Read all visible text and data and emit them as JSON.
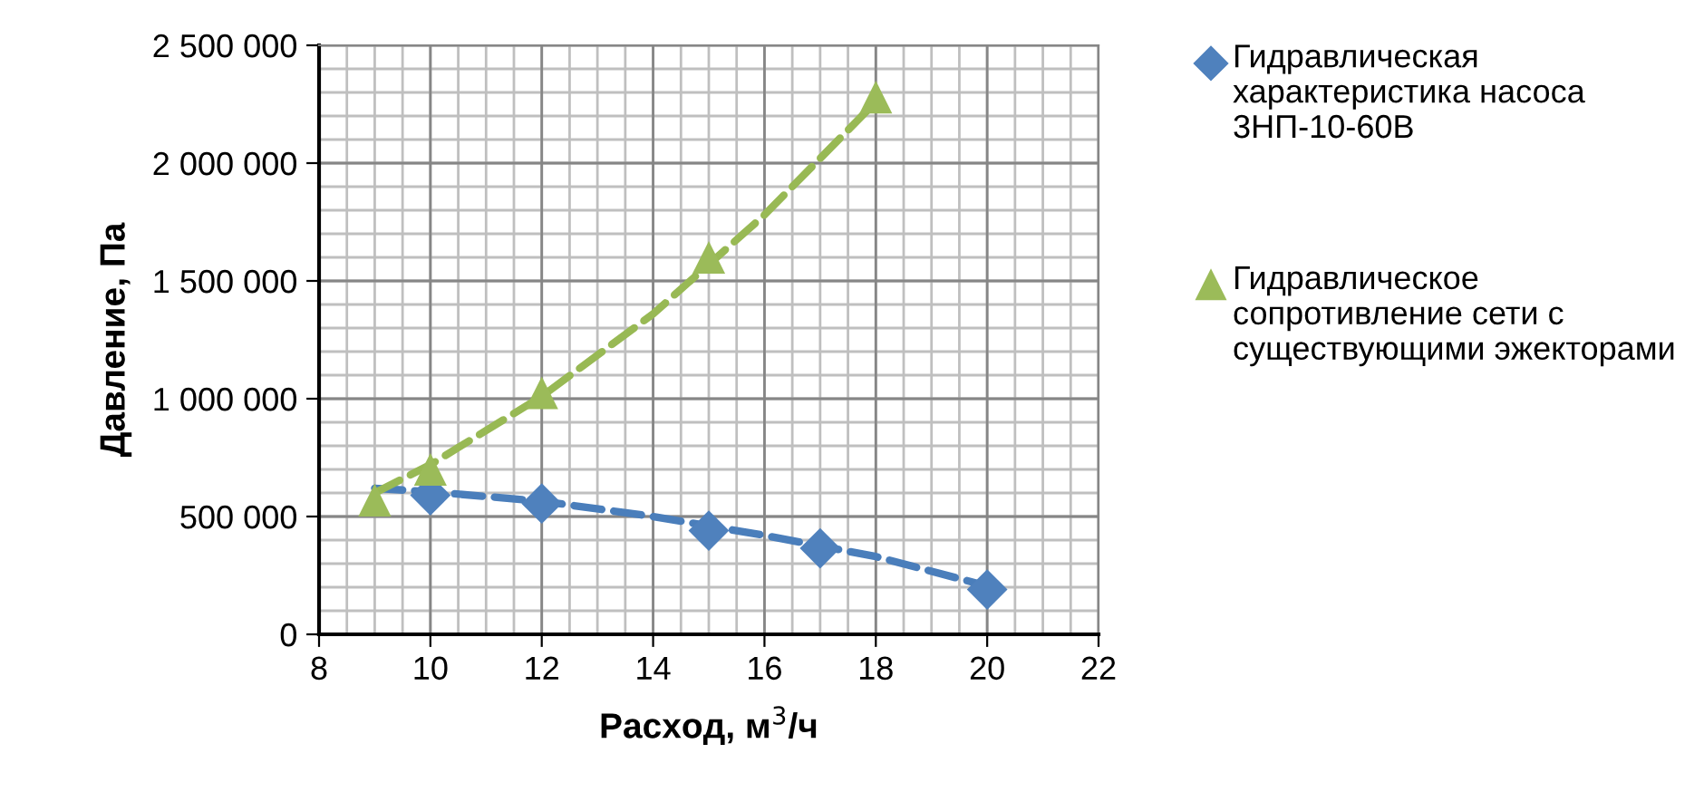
{
  "chart_data": {
    "type": "scatter",
    "xlabel": "Расход, м$^{3}$/ч",
    "ylabel": "Давление, Па",
    "xlim": [
      8,
      22
    ],
    "xticks": [
      8,
      10,
      12,
      14,
      16,
      18,
      20,
      22
    ],
    "ylim": [
      0,
      2500000
    ],
    "yticks": [
      {
        "value": 0,
        "label": "0"
      },
      {
        "value": 500000,
        "label": "500 000"
      },
      {
        "value": 1000000,
        "label": "1 000 000"
      },
      {
        "value": 1500000,
        "label": "1 500 000"
      },
      {
        "value": 2000000,
        "label": "2 000 000"
      },
      {
        "value": 2500000,
        "label": "2 500 000"
      }
    ],
    "grid": true,
    "legend": "right",
    "series": [
      {
        "type": "line",
        "color": "#4a7ebb",
        "line_style": "dashed",
        "marker": "none",
        "x": [
          9,
          10,
          12,
          14,
          16,
          18,
          20
        ],
        "values": [
          620000,
          605000,
          565000,
          500000,
          420000,
          330000,
          205000
        ]
      },
      {
        "type": "line",
        "color": "#98b954",
        "line_style": "dashed",
        "marker": "none",
        "x": [
          9,
          10,
          12,
          14,
          16,
          18
        ],
        "values": [
          600000,
          720000,
          1010000,
          1360000,
          1780000,
          2260000
        ]
      },
      {
        "name": "Гидравлическая характеристика насоса 3НП-10-60В",
        "color": "#4f81bd",
        "marker": "diamond",
        "x": [
          10,
          12,
          15,
          17,
          20
        ],
        "values": [
          590000,
          555000,
          440000,
          365000,
          190000
        ]
      },
      {
        "name": "Гидравлическое сопротивление сети с существующими эжекторами",
        "color": "#9bbb59",
        "marker": "triangle",
        "x": [
          9,
          10,
          12,
          15,
          18
        ],
        "values": [
          570000,
          700000,
          1025000,
          1600000,
          2280000
        ]
      }
    ]
  }
}
